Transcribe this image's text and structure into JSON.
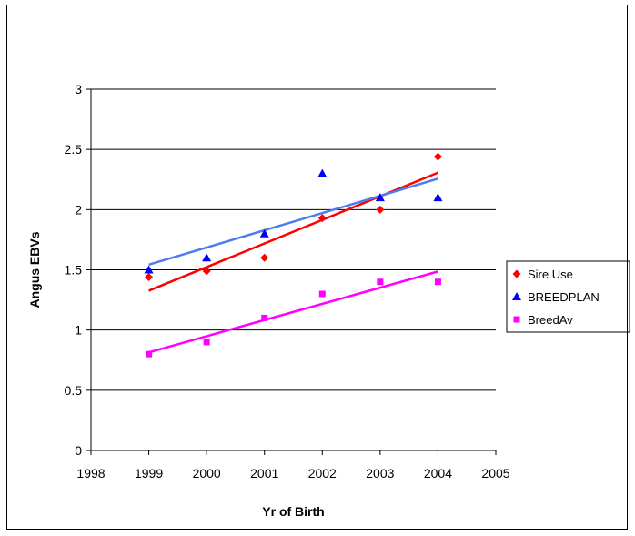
{
  "chart_data": {
    "type": "scatter",
    "title": "",
    "xlabel": "Yr of Birth",
    "ylabel": "Angus EBVs",
    "xlim": [
      1998,
      2005
    ],
    "ylim": [
      0,
      3
    ],
    "xticks": [
      "1998",
      "1999",
      "2000",
      "2001",
      "2002",
      "2003",
      "2004",
      "2005"
    ],
    "yticks": [
      "0",
      "0.5",
      "1",
      "1.5",
      "2",
      "2.5",
      "3"
    ],
    "grid": "horizontal",
    "legend_position": "right",
    "series": [
      {
        "name": "Sire Use",
        "marker": "diamond",
        "color": "#ff0000",
        "x": [
          1999,
          2000,
          2001,
          2002,
          2003,
          2004
        ],
        "y": [
          1.44,
          1.49,
          1.6,
          1.93,
          2.0,
          2.44
        ],
        "trendline": true
      },
      {
        "name": "BREEDPLAN",
        "marker": "triangle",
        "color": "#0000ff",
        "trend_color": "#4a7df0",
        "x": [
          1999,
          2000,
          2001,
          2002,
          2003,
          2004
        ],
        "y": [
          1.5,
          1.6,
          1.8,
          2.3,
          2.1,
          2.1
        ],
        "trendline": true
      },
      {
        "name": "BreedAv",
        "marker": "square",
        "color": "#ff00ff",
        "x": [
          1999,
          2000,
          2001,
          2002,
          2003,
          2004
        ],
        "y": [
          0.8,
          0.9,
          1.1,
          1.3,
          1.4,
          1.4
        ],
        "trendline": true
      }
    ]
  }
}
